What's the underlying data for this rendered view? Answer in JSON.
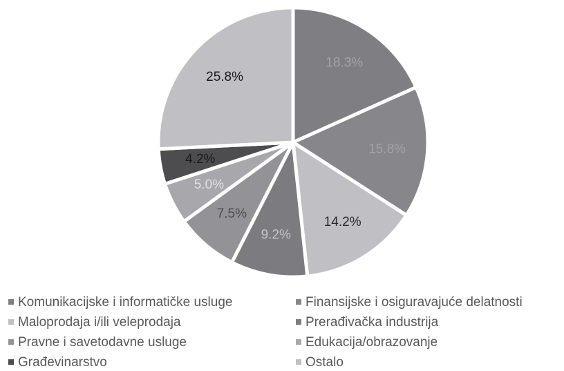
{
  "chart_data": {
    "type": "pie",
    "categories": [
      "Komunikacijske i informatičke usluge",
      "Finansijske i osiguravajuće delatnosti",
      "Maloprodaja i/ili veleprodaja",
      "Prerađivačka industrija",
      "Pravne i savetodavne usluge",
      "Edukacija/obrazovanje",
      "Građevinarstvo",
      "Ostalo"
    ],
    "values": [
      18.3,
      15.8,
      14.2,
      9.2,
      7.5,
      5.0,
      4.2,
      25.8
    ],
    "value_labels": [
      "18.3%",
      "15.8%",
      "14.2%",
      "9.2%",
      "7.5%",
      "5.0%",
      "4.2%",
      "25.8%"
    ],
    "colors": [
      "#7f7f83",
      "#87878b",
      "#c0c0c4",
      "#7c7c80",
      "#939397",
      "#a8a8ac",
      "#4d4d50",
      "#c0c0c4"
    ],
    "label_colors": [
      "#a3a3a6",
      "#a3a3a6",
      "#2b2b2b",
      "#c4c4c7",
      "#4d4d50",
      "#e0e0e2",
      "#1a1a1a",
      "#1a1a1a"
    ],
    "legend": "bottom"
  }
}
